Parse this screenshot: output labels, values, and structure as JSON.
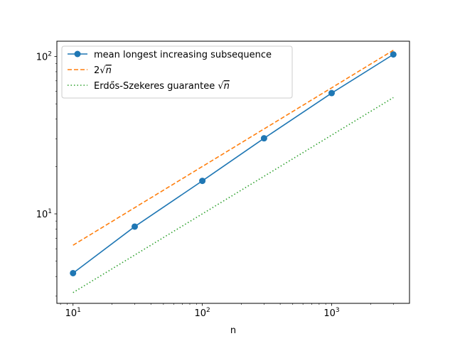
{
  "chart_data": {
    "type": "line",
    "xlabel": "n",
    "ylabel": "",
    "xscale": "log",
    "yscale": "log",
    "xlim": [
      7.5,
      4000
    ],
    "ylim": [
      2.7,
      125
    ],
    "grid": false,
    "legend_position": "upper-left",
    "x_major_ticks": [
      {
        "value": 10,
        "base": "10",
        "exp": "1"
      },
      {
        "value": 100,
        "base": "10",
        "exp": "2"
      },
      {
        "value": 1000,
        "base": "10",
        "exp": "3"
      }
    ],
    "y_major_ticks": [
      {
        "value": 10,
        "base": "10",
        "exp": "1"
      },
      {
        "value": 100,
        "base": "10",
        "exp": "2"
      }
    ],
    "series": [
      {
        "name": "mean longest increasing subsequence",
        "style": "solid",
        "marker": "circle",
        "color": "#1f77b4",
        "x": [
          10,
          30,
          100,
          300,
          1000,
          3000
        ],
        "y": [
          4.2,
          8.3,
          16.2,
          30.2,
          58.5,
          103
        ]
      },
      {
        "name_prefix": "2",
        "name_radicand": "n",
        "style": "dashed",
        "color": "#ff7f0e",
        "x": [
          10,
          3000
        ],
        "y": [
          6.32,
          109.5
        ]
      },
      {
        "name_prefix": "Erdős-Szekeres guarantee ",
        "name_radicand": "n",
        "style": "dotted",
        "color": "#2ca02c",
        "x": [
          10,
          3000
        ],
        "y": [
          3.16,
          54.8
        ]
      }
    ]
  }
}
